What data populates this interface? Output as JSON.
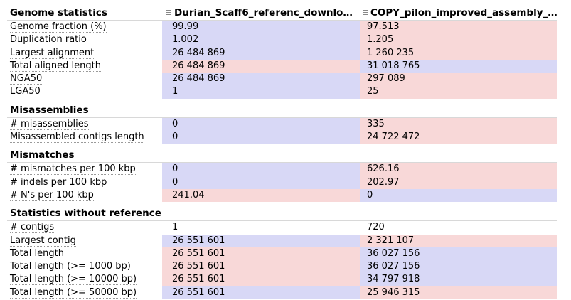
{
  "columns": {
    "assembly1": "Durian_Scaff6_referenc_downlo…",
    "assembly2": "COPY_pilon_improved_assembly_…"
  },
  "sections": [
    {
      "title": "Genome statistics",
      "rows": [
        {
          "metric": "Genome fraction (%)",
          "v1": "99.99",
          "v2": "97.513",
          "c1": "blue",
          "c2": "pink"
        },
        {
          "metric": "Duplication ratio",
          "v1": "1.002",
          "v2": "1.205",
          "c1": "blue",
          "c2": "pink"
        },
        {
          "metric": "Largest alignment",
          "v1": "26 484 869",
          "v2": "1 260 235",
          "c1": "blue",
          "c2": "pink"
        },
        {
          "metric": "Total aligned length",
          "v1": "26 484 869",
          "v2": "31 018 765",
          "c1": "pink",
          "c2": "blue"
        },
        {
          "metric": "NGA50",
          "v1": "26 484 869",
          "v2": "297 089",
          "c1": "blue",
          "c2": "pink"
        },
        {
          "metric": "LGA50",
          "v1": "1",
          "v2": "25",
          "c1": "blue",
          "c2": "pink"
        }
      ]
    },
    {
      "title": "Misassemblies",
      "rows": [
        {
          "metric": "# misassemblies",
          "v1": "0",
          "v2": "335",
          "c1": "blue",
          "c2": "pink"
        },
        {
          "metric": "Misassembled contigs length",
          "v1": "0",
          "v2": "24 722 472",
          "c1": "blue",
          "c2": "pink"
        }
      ]
    },
    {
      "title": "Mismatches",
      "rows": [
        {
          "metric": "# mismatches per 100 kbp",
          "v1": "0",
          "v2": "626.16",
          "c1": "blue",
          "c2": "pink"
        },
        {
          "metric": "# indels per 100 kbp",
          "v1": "0",
          "v2": "202.97",
          "c1": "blue",
          "c2": "pink"
        },
        {
          "metric": "# N's per 100 kbp",
          "v1": "241.04",
          "v2": "0",
          "c1": "pink",
          "c2": "blue"
        }
      ]
    },
    {
      "title": "Statistics without reference",
      "rows": [
        {
          "metric": "# contigs",
          "v1": "1",
          "v2": "720",
          "c1": "none",
          "c2": "none"
        },
        {
          "metric": "Largest contig",
          "v1": "26 551 601",
          "v2": "2 321 107",
          "c1": "blue",
          "c2": "pink"
        },
        {
          "metric": "Total length",
          "v1": "26 551 601",
          "v2": "36 027 156",
          "c1": "pink",
          "c2": "blue"
        },
        {
          "metric": "Total length (>= 1000 bp)",
          "v1": "26 551 601",
          "v2": "36 027 156",
          "c1": "pink",
          "c2": "blue"
        },
        {
          "metric": "Total length (>= 10000 bp)",
          "v1": "26 551 601",
          "v2": "34 797 918",
          "c1": "pink",
          "c2": "blue"
        },
        {
          "metric": "Total length (>= 50000 bp)",
          "v1": "26 551 601",
          "v2": "25 946 315",
          "c1": "blue",
          "c2": "pink"
        }
      ]
    }
  ],
  "colors": {
    "blue": "#d8d8f6",
    "pink": "#f8d8d8"
  }
}
